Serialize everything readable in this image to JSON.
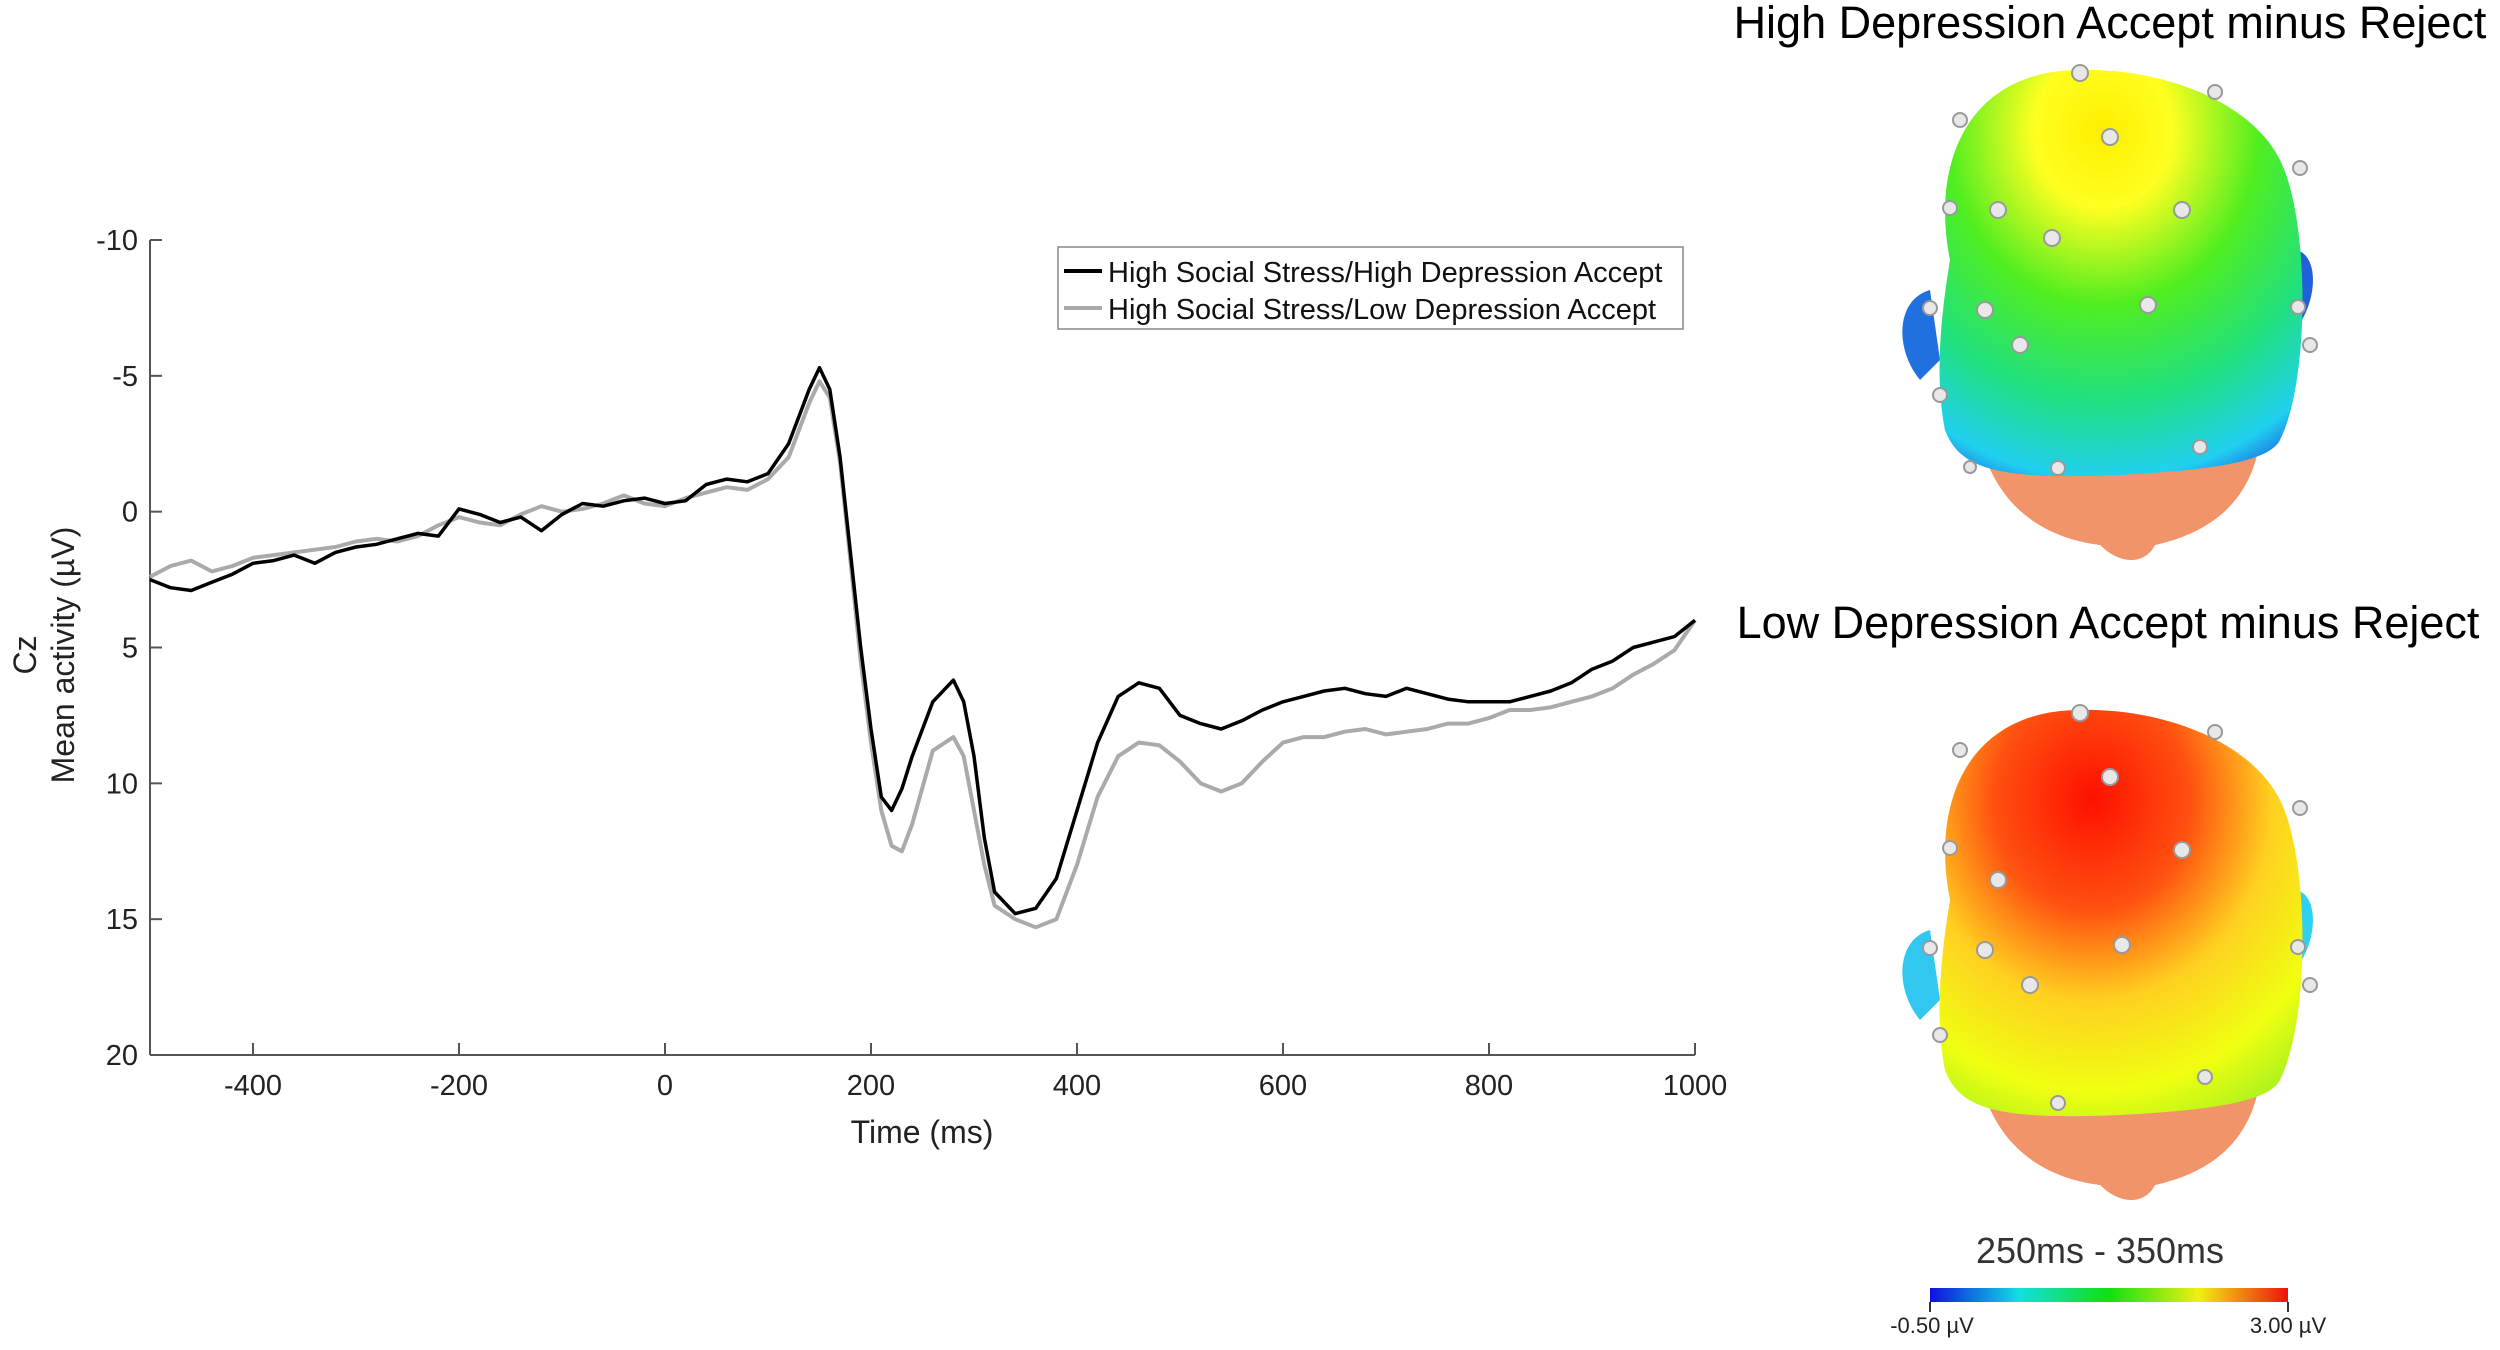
{
  "chart_data": {
    "type": "line",
    "ylabel_top": "Cz",
    "ylabel": "Mean activity (µV)",
    "xlabel": "Time (ms)",
    "xlim": [
      -500,
      1000
    ],
    "ylim": [
      -10,
      20
    ],
    "y_reversed": true,
    "x_ticks": [
      "-400",
      "-200",
      "0",
      "200",
      "400",
      "600",
      "800",
      "1000"
    ],
    "y_ticks": [
      "-10",
      "-5",
      "0",
      "5",
      "10",
      "15",
      "20"
    ],
    "legend_position": "top-right",
    "series": [
      {
        "name": "High Social Stress/High Depression Accept",
        "color": "#000000",
        "x": [
          -500,
          -480,
          -460,
          -440,
          -420,
          -400,
          -380,
          -360,
          -340,
          -320,
          -300,
          -280,
          -260,
          -240,
          -220,
          -200,
          -180,
          -160,
          -140,
          -120,
          -100,
          -80,
          -60,
          -40,
          -20,
          0,
          20,
          40,
          60,
          80,
          100,
          120,
          130,
          140,
          150,
          160,
          170,
          180,
          190,
          200,
          210,
          220,
          230,
          240,
          260,
          280,
          290,
          300,
          310,
          320,
          340,
          360,
          380,
          400,
          420,
          440,
          460,
          480,
          500,
          520,
          540,
          560,
          580,
          600,
          620,
          640,
          660,
          680,
          700,
          720,
          740,
          760,
          780,
          800,
          820,
          840,
          860,
          880,
          900,
          920,
          940,
          960,
          980,
          1000
        ],
        "y": [
          2.5,
          2.8,
          2.9,
          2.6,
          2.3,
          1.9,
          1.8,
          1.6,
          1.9,
          1.5,
          1.3,
          1.2,
          1.0,
          0.8,
          0.9,
          -0.1,
          0.1,
          0.4,
          0.2,
          0.7,
          0.1,
          -0.3,
          -0.2,
          -0.4,
          -0.5,
          -0.3,
          -0.4,
          -1.0,
          -1.2,
          -1.1,
          -1.4,
          -2.5,
          -3.5,
          -4.5,
          -5.3,
          -4.5,
          -2.0,
          1.5,
          5.0,
          8.0,
          10.5,
          11.0,
          10.2,
          9.0,
          7.0,
          6.2,
          7.0,
          9.0,
          12.0,
          14.0,
          14.8,
          14.6,
          13.5,
          11.0,
          8.5,
          6.8,
          6.3,
          6.5,
          7.5,
          7.8,
          8.0,
          7.7,
          7.3,
          7.0,
          6.8,
          6.6,
          6.5,
          6.7,
          6.8,
          6.5,
          6.7,
          6.9,
          7.0,
          7.0,
          7.0,
          6.8,
          6.6,
          6.3,
          5.8,
          5.5,
          5.0,
          4.8,
          4.6,
          4.0
        ]
      },
      {
        "name": "High Social Stress/Low Depression Accept",
        "color": "#aaaaaa",
        "x": [
          -500,
          -480,
          -460,
          -440,
          -420,
          -400,
          -380,
          -360,
          -340,
          -320,
          -300,
          -280,
          -260,
          -240,
          -220,
          -200,
          -180,
          -160,
          -140,
          -120,
          -100,
          -80,
          -60,
          -40,
          -20,
          0,
          20,
          40,
          60,
          80,
          100,
          120,
          130,
          140,
          150,
          160,
          170,
          180,
          190,
          200,
          210,
          220,
          230,
          240,
          260,
          280,
          290,
          300,
          310,
          320,
          340,
          360,
          380,
          400,
          420,
          440,
          460,
          480,
          500,
          520,
          540,
          560,
          580,
          600,
          620,
          640,
          660,
          680,
          700,
          720,
          740,
          760,
          780,
          800,
          820,
          840,
          860,
          880,
          900,
          920,
          940,
          960,
          980,
          1000
        ],
        "y": [
          2.4,
          2.0,
          1.8,
          2.2,
          2.0,
          1.7,
          1.6,
          1.5,
          1.4,
          1.3,
          1.1,
          1.0,
          1.1,
          0.9,
          0.5,
          0.2,
          0.4,
          0.5,
          0.1,
          -0.2,
          0.0,
          -0.1,
          -0.3,
          -0.6,
          -0.3,
          -0.2,
          -0.5,
          -0.7,
          -0.9,
          -0.8,
          -1.2,
          -2.0,
          -3.0,
          -4.0,
          -4.8,
          -4.2,
          -1.8,
          1.8,
          5.5,
          8.5,
          11.0,
          12.3,
          12.5,
          11.5,
          8.8,
          8.3,
          9.0,
          11.0,
          13.0,
          14.5,
          15.0,
          15.3,
          15.0,
          13.0,
          10.5,
          9.0,
          8.5,
          8.6,
          9.2,
          10.0,
          10.3,
          10.0,
          9.2,
          8.5,
          8.3,
          8.3,
          8.1,
          8.0,
          8.2,
          8.1,
          8.0,
          7.8,
          7.8,
          7.6,
          7.3,
          7.3,
          7.2,
          7.0,
          6.8,
          6.5,
          6.0,
          5.6,
          5.1,
          4.0
        ]
      }
    ]
  },
  "topomaps": [
    {
      "title": "High Depression Accept minus Reject"
    },
    {
      "title": "Low Depression Accept minus Reject"
    }
  ],
  "time_window": "250ms - 350ms",
  "colorbar": {
    "min_label": "-0.50 µV",
    "max_label": "3.00 µV",
    "colors": [
      "#1010e0",
      "#10e0e0",
      "#10e010",
      "#f0f010",
      "#f01010"
    ]
  }
}
